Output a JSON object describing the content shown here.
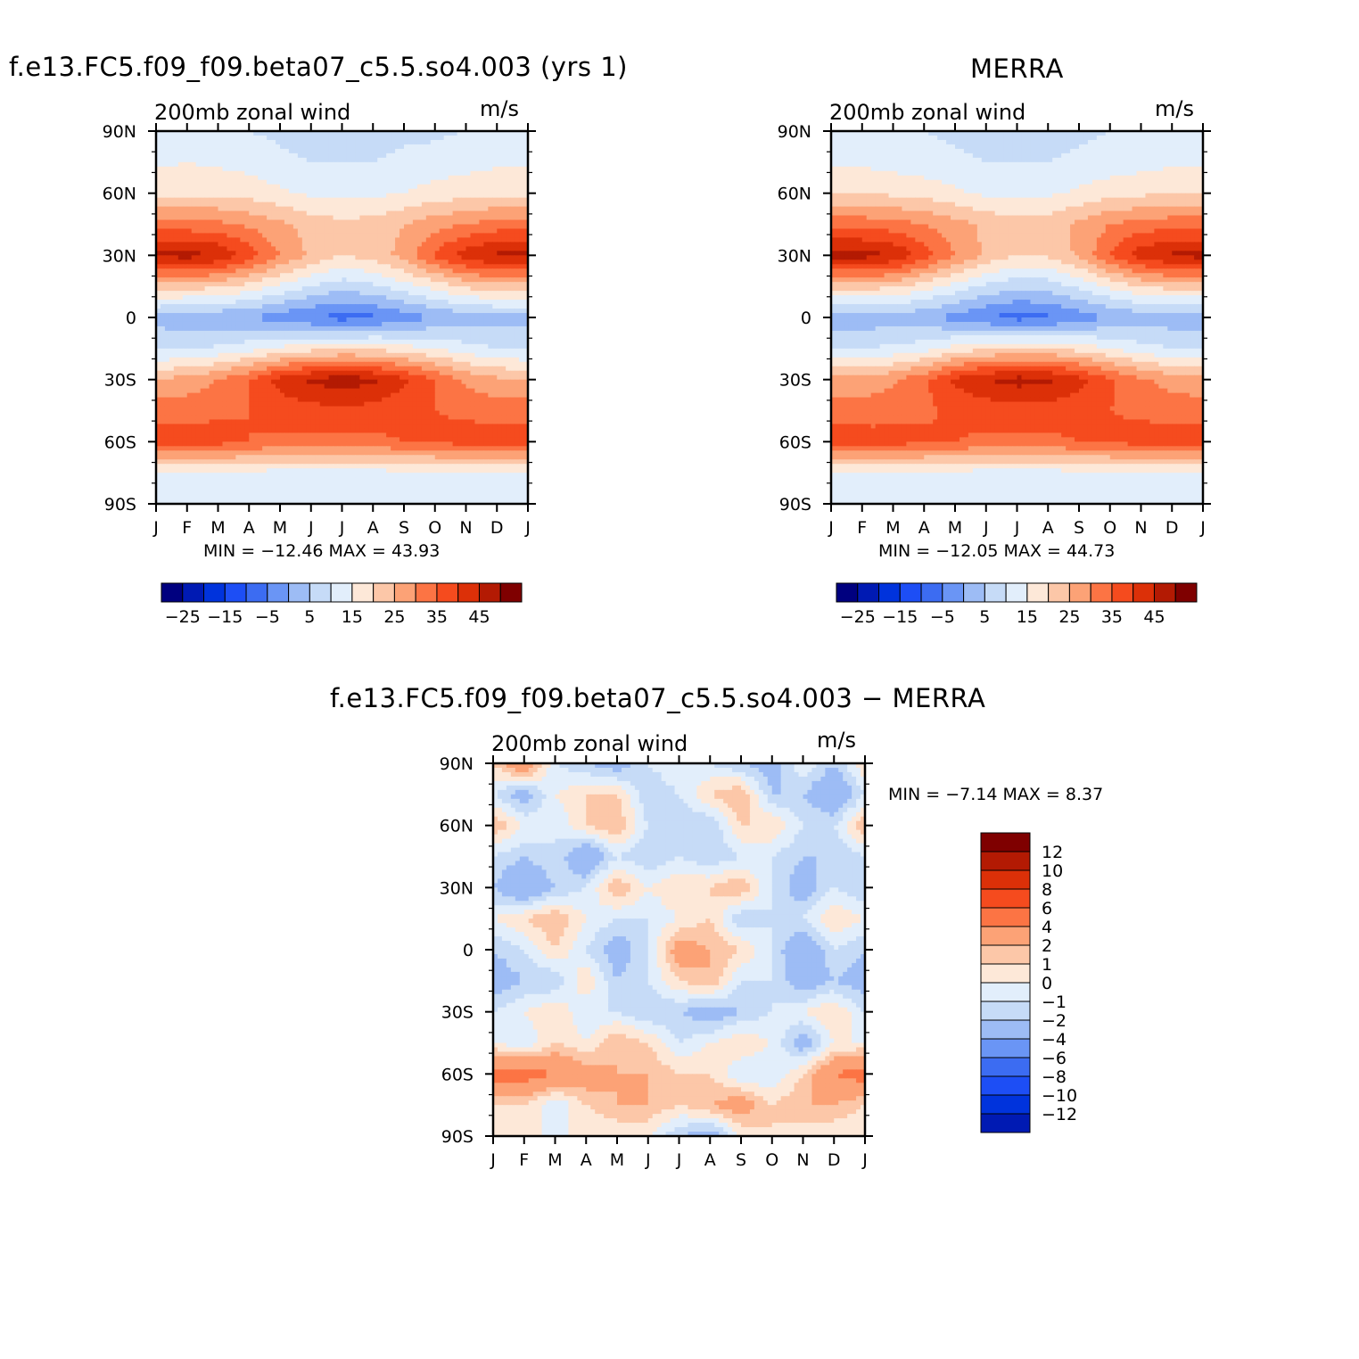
{
  "panels": [
    {
      "title": "f.e13.FC5.f09_f09.beta07_c5.5.so4.003 (yrs 1)",
      "field": "200mb zonal wind",
      "units": "m/s",
      "min_max": "MIN = −12.46 MAX =   43.93"
    },
    {
      "title": "MERRA",
      "field": "200mb zonal wind",
      "units": "m/s",
      "min_max": "MIN = −12.05 MAX =   44.73"
    },
    {
      "title": "f.e13.FC5.f09_f09.beta07_c5.5.so4.003 − MERRA",
      "field": "200mb zonal wind",
      "units": "m/s",
      "min_max": "MIN =   −7.14 MAX =    8.37"
    }
  ],
  "chart_data": [
    {
      "type": "heatmap",
      "name": "model",
      "x_ticks": [
        "J",
        "F",
        "M",
        "A",
        "M",
        "J",
        "J",
        "A",
        "S",
        "O",
        "N",
        "D",
        "J"
      ],
      "y_ticks": [
        "90N",
        "60N",
        "30N",
        "0",
        "30S",
        "60S",
        "90S"
      ],
      "lat_nodes": [
        90,
        75,
        60,
        45,
        30,
        15,
        0,
        -15,
        -30,
        -45,
        -60,
        -75,
        -90
      ],
      "months": [
        "Jan",
        "Feb",
        "Mar",
        "Apr",
        "May",
        "Jun",
        "Jul",
        "Aug",
        "Sep",
        "Oct",
        "Nov",
        "Dec",
        "Jan"
      ],
      "values": [
        [
          6,
          7,
          6,
          5,
          4,
          3,
          3,
          3,
          4,
          4,
          5,
          6,
          6
        ],
        [
          9,
          10,
          9,
          8,
          6,
          5,
          5,
          5,
          6,
          7,
          8,
          9,
          9
        ],
        [
          14,
          14,
          14,
          13,
          11,
          9,
          9,
          9,
          10,
          12,
          13,
          14,
          14
        ],
        [
          27,
          27,
          26,
          24,
          21,
          18,
          16,
          17,
          20,
          23,
          25,
          27,
          27
        ],
        [
          41,
          42,
          40,
          33,
          25,
          19,
          15,
          17,
          22,
          31,
          38,
          41,
          41
        ],
        [
          18,
          17,
          16,
          13,
          9,
          5,
          2,
          4,
          8,
          12,
          16,
          18,
          18
        ],
        [
          -2,
          -3,
          -4,
          -5,
          -8,
          -10,
          -12,
          -11,
          -8,
          -5,
          -3,
          -2,
          -2
        ],
        [
          4,
          4,
          6,
          8,
          11,
          13,
          14,
          14,
          12,
          10,
          7,
          5,
          4
        ],
        [
          20,
          22,
          25,
          30,
          37,
          41,
          43,
          41,
          36,
          30,
          24,
          21,
          20
        ],
        [
          28,
          28,
          29,
          30,
          32,
          33,
          34,
          33,
          31,
          30,
          29,
          28,
          28
        ],
        [
          33,
          33,
          32,
          30,
          29,
          29,
          28,
          29,
          30,
          31,
          32,
          33,
          33
        ],
        [
          10,
          10,
          9,
          9,
          8,
          8,
          8,
          8,
          9,
          9,
          10,
          10,
          10
        ],
        [
          6,
          6,
          6,
          6,
          6,
          6,
          6,
          6,
          6,
          6,
          6,
          6,
          6
        ]
      ],
      "levels": [
        -25,
        -20,
        -15,
        -10,
        -5,
        0,
        5,
        10,
        15,
        20,
        25,
        30,
        35,
        40,
        45
      ],
      "colorbar_labels": [
        "−25",
        "−15",
        "−5",
        "5",
        "15",
        "25",
        "35",
        "45"
      ],
      "colors": [
        "#00007f",
        "#001ab3",
        "#0033dc",
        "#1d4ef5",
        "#3c6cf2",
        "#6a95f5",
        "#9dbcf5",
        "#c6dbf7",
        "#e2eefb",
        "#fde8d8",
        "#fcc7a8",
        "#fca276",
        "#fc7444",
        "#f54b1e",
        "#dc3008",
        "#b31a03",
        "#7f0000"
      ]
    },
    {
      "type": "heatmap",
      "name": "MERRA",
      "x_ticks": [
        "J",
        "F",
        "M",
        "A",
        "M",
        "J",
        "J",
        "A",
        "S",
        "O",
        "N",
        "D",
        "J"
      ],
      "y_ticks": [
        "90N",
        "60N",
        "30N",
        "0",
        "30S",
        "60S",
        "90S"
      ],
      "lat_nodes": [
        90,
        75,
        60,
        45,
        30,
        15,
        0,
        -15,
        -30,
        -45,
        -60,
        -75,
        -90
      ],
      "months": [
        "Jan",
        "Feb",
        "Mar",
        "Apr",
        "May",
        "Jun",
        "Jul",
        "Aug",
        "Sep",
        "Oct",
        "Nov",
        "Dec",
        "Jan"
      ],
      "values": [
        [
          6,
          6,
          6,
          5,
          4,
          3,
          3,
          3,
          4,
          5,
          6,
          6,
          6
        ],
        [
          9,
          9,
          8,
          7,
          6,
          5,
          5,
          5,
          6,
          7,
          8,
          9,
          9
        ],
        [
          15,
          15,
          14,
          13,
          11,
          9,
          9,
          9,
          11,
          13,
          14,
          15,
          15
        ],
        [
          28,
          28,
          27,
          25,
          22,
          19,
          17,
          18,
          21,
          25,
          27,
          28,
          28
        ],
        [
          42,
          42,
          40,
          33,
          25,
          19,
          15,
          16,
          21,
          30,
          38,
          41,
          42
        ],
        [
          17,
          17,
          16,
          12,
          8,
          4,
          1,
          2,
          6,
          11,
          15,
          17,
          17
        ],
        [
          -3,
          -3,
          -3,
          -4,
          -7,
          -10,
          -12,
          -11,
          -8,
          -5,
          -3,
          -3,
          -3
        ],
        [
          5,
          5,
          6,
          8,
          12,
          14,
          15,
          15,
          13,
          10,
          7,
          5,
          5
        ],
        [
          22,
          22,
          24,
          29,
          36,
          40,
          42,
          41,
          37,
          31,
          26,
          23,
          22
        ],
        [
          27,
          27,
          28,
          29,
          31,
          32,
          33,
          33,
          31,
          30,
          29,
          28,
          27
        ],
        [
          33,
          33,
          32,
          31,
          30,
          29,
          29,
          29,
          30,
          31,
          32,
          33,
          33
        ],
        [
          10,
          10,
          10,
          9,
          9,
          8,
          8,
          8,
          9,
          9,
          10,
          10,
          10
        ],
        [
          6,
          6,
          6,
          6,
          6,
          6,
          6,
          6,
          6,
          6,
          6,
          6,
          6
        ]
      ],
      "levels": [
        -25,
        -20,
        -15,
        -10,
        -5,
        0,
        5,
        10,
        15,
        20,
        25,
        30,
        35,
        40,
        45
      ],
      "colorbar_labels": [
        "−25",
        "−15",
        "−5",
        "5",
        "15",
        "25",
        "35",
        "45"
      ],
      "colors": [
        "#00007f",
        "#001ab3",
        "#0033dc",
        "#1d4ef5",
        "#3c6cf2",
        "#6a95f5",
        "#9dbcf5",
        "#c6dbf7",
        "#e2eefb",
        "#fde8d8",
        "#fcc7a8",
        "#fca276",
        "#fc7444",
        "#f54b1e",
        "#dc3008",
        "#b31a03",
        "#7f0000"
      ]
    },
    {
      "type": "heatmap",
      "name": "difference",
      "x_ticks": [
        "J",
        "F",
        "M",
        "A",
        "M",
        "J",
        "J",
        "A",
        "S",
        "O",
        "N",
        "D",
        "J"
      ],
      "y_ticks": [
        "90N",
        "60N",
        "30N",
        "0",
        "30S",
        "60S",
        "90S"
      ],
      "lat_nodes": [
        90,
        75,
        60,
        45,
        30,
        15,
        0,
        -15,
        -30,
        -45,
        -60,
        -75,
        -90
      ],
      "months": [
        "Jan",
        "Feb",
        "Mar",
        "Apr",
        "May",
        "Jun",
        "Jul",
        "Aug",
        "Sep",
        "Oct",
        "Nov",
        "Dec",
        "Jan"
      ],
      "values": [
        [
          1,
          4,
          -1,
          -2,
          -3,
          -1,
          0,
          -1,
          -2,
          -3,
          0,
          -2,
          1
        ],
        [
          -1,
          -3,
          0,
          1,
          1,
          -2,
          -1,
          1,
          2,
          -2,
          -2,
          -4,
          -1
        ],
        [
          2,
          0,
          -1,
          1,
          2,
          -1,
          -2,
          -2,
          1,
          1,
          -1,
          -1,
          2
        ],
        [
          -1,
          -2,
          -1,
          -4,
          -1,
          -2,
          -1,
          -2,
          -1,
          -1,
          -2,
          -2,
          -1
        ],
        [
          -2,
          -4,
          -2,
          -1,
          2,
          0,
          1,
          1,
          2,
          -1,
          -3,
          -1,
          -2
        ],
        [
          0,
          1,
          2,
          0,
          -1,
          -1,
          0,
          1,
          -2,
          -1,
          -1,
          1,
          0
        ],
        [
          -2,
          -1,
          1,
          -1,
          -3,
          -1,
          3,
          2,
          1,
          -1,
          -4,
          -1,
          -2
        ],
        [
          -3,
          -2,
          -2,
          1,
          -2,
          -1,
          1,
          2,
          -1,
          -1,
          -3,
          -2,
          -3
        ],
        [
          -1,
          0,
          1,
          -1,
          -1,
          -2,
          -2,
          -3,
          -2,
          -1,
          0,
          1,
          -1
        ],
        [
          0,
          -1,
          1,
          0,
          2,
          1,
          -1,
          0,
          1,
          0,
          -3,
          0,
          0
        ],
        [
          5,
          5,
          4,
          3,
          2,
          2,
          1,
          1,
          -1,
          -1,
          1,
          4,
          5
        ],
        [
          1,
          1,
          -1,
          1,
          2,
          2,
          1,
          2,
          3,
          1,
          2,
          2,
          1
        ],
        [
          0,
          0,
          0,
          0,
          0,
          0,
          -2,
          -3,
          0,
          1,
          0,
          0,
          0
        ]
      ],
      "levels": [
        -12,
        -10,
        -8,
        -6,
        -4,
        -2,
        -1,
        0,
        1,
        2,
        4,
        6,
        8,
        10,
        12
      ],
      "colorbar_labels": [
        "12",
        "10",
        "8",
        "6",
        "4",
        "2",
        "1",
        "0",
        "−1",
        "−2",
        "−4",
        "−6",
        "−8",
        "−10",
        "−12"
      ],
      "colors": [
        "#00007f",
        "#001ab3",
        "#0033dc",
        "#1d4ef5",
        "#3c6cf2",
        "#6a95f5",
        "#9dbcf5",
        "#c6dbf7",
        "#e2eefb",
        "#fde8d8",
        "#fcc7a8",
        "#fca276",
        "#fc7444",
        "#f54b1e",
        "#dc3008",
        "#b31a03",
        "#7f0000"
      ]
    }
  ]
}
